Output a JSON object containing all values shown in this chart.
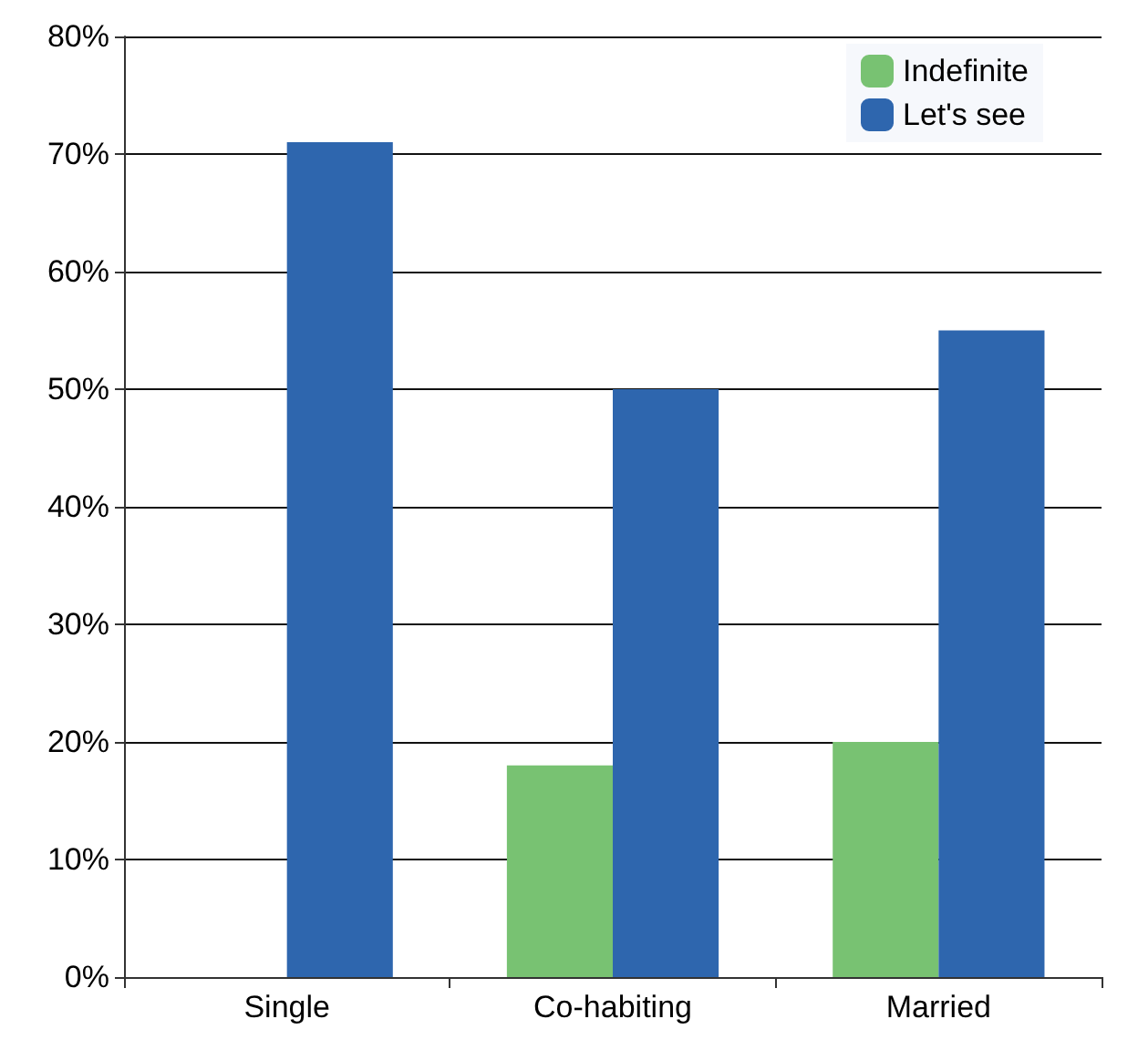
{
  "chart_data": {
    "type": "bar",
    "categories": [
      "Single",
      "Co-habiting",
      "Married"
    ],
    "series": [
      {
        "name": "Indefinite",
        "color": "#78c272",
        "values": [
          0,
          18,
          20
        ]
      },
      {
        "name": "Let's see",
        "color": "#2e66ae",
        "values": [
          71,
          50,
          55
        ]
      }
    ],
    "ylim": [
      0,
      80
    ],
    "yticks": [
      {
        "value": 0,
        "label": "0%"
      },
      {
        "value": 10,
        "label": "10%"
      },
      {
        "value": 20,
        "label": "20%"
      },
      {
        "value": 30,
        "label": "30%"
      },
      {
        "value": 40,
        "label": "40%"
      },
      {
        "value": 50,
        "label": "50%"
      },
      {
        "value": 60,
        "label": "60%"
      },
      {
        "value": 70,
        "label": "70%"
      },
      {
        "value": 80,
        "label": "80%"
      }
    ],
    "grid": "y",
    "legend": "top right"
  }
}
